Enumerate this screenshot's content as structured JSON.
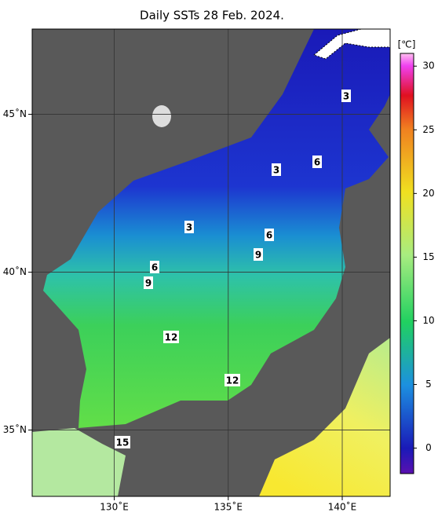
{
  "title": "Daily SSTs 28 Feb. 2024.",
  "lon_lim": [
    126.4,
    142.1
  ],
  "lat_lim": [
    32.9,
    47.7
  ],
  "lon_ticks": [
    {
      "value": 130,
      "label": "130˚E"
    },
    {
      "value": 135,
      "label": "135˚E"
    },
    {
      "value": 140,
      "label": "140˚E"
    }
  ],
  "lat_ticks": [
    {
      "value": 35,
      "label": "35˚N"
    },
    {
      "value": 40,
      "label": "40˚N"
    },
    {
      "value": 45,
      "label": "45˚N"
    }
  ],
  "colorbar": {
    "unit": "[℃]",
    "lim": [
      -2,
      31
    ],
    "ticks": [
      0,
      5,
      10,
      15,
      20,
      25,
      30
    ]
  },
  "contour_labels": [
    3,
    3,
    3,
    6,
    6,
    6,
    9,
    9,
    12,
    12,
    15
  ]
}
